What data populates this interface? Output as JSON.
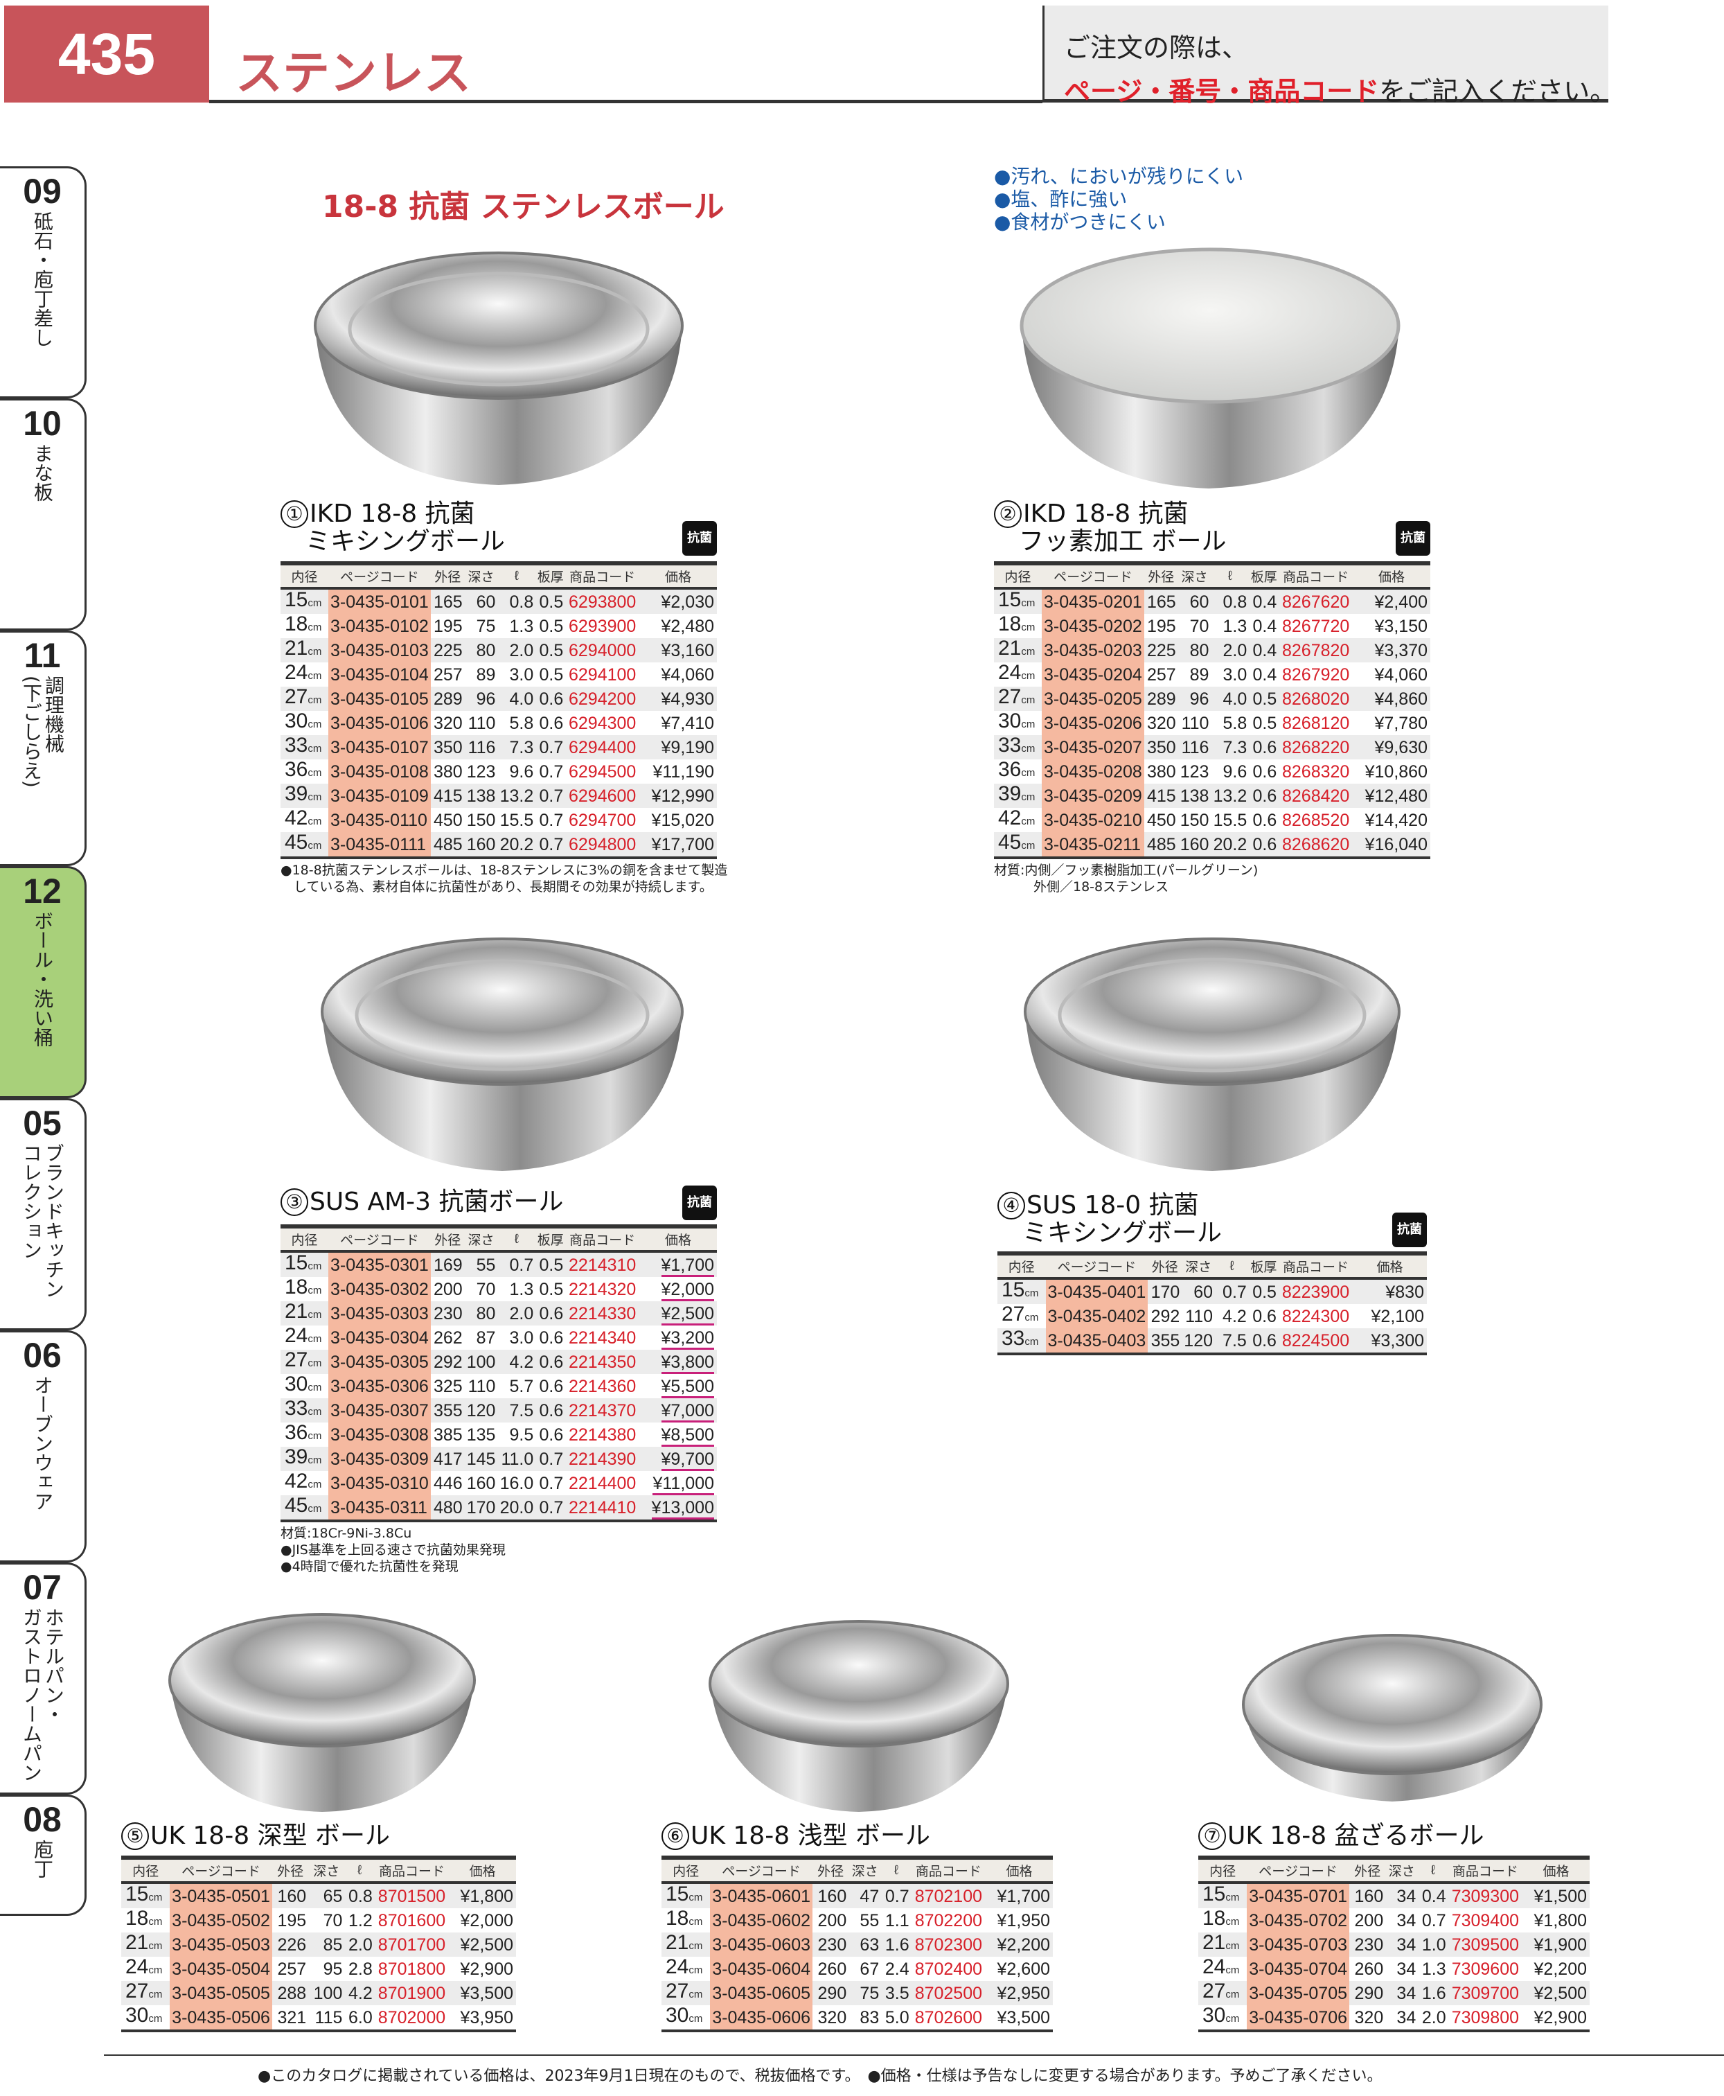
{
  "header": {
    "page_number": "435",
    "category": "ステンレス",
    "order_note_line1": "ご注文の際は、",
    "order_note_red": "ページ・番号・商品コード",
    "order_note_tail": "をご記入ください。"
  },
  "tabs": [
    {
      "num": "09",
      "labels": [
        "砥石・庖丁差し"
      ],
      "active": false
    },
    {
      "num": "10",
      "labels": [
        "まな板"
      ],
      "active": false
    },
    {
      "num": "11",
      "labels": [
        "調理機械",
        "(下ごしらえ)"
      ],
      "active": false
    },
    {
      "num": "12",
      "labels": [
        "ボール・洗い桶"
      ],
      "active": true
    },
    {
      "num": "05",
      "labels": [
        "ブランドキッチン",
        "コレクション"
      ],
      "active": false
    },
    {
      "num": "06",
      "labels": [
        "オーブンウェア"
      ],
      "active": false
    },
    {
      "num": "07",
      "labels": [
        "ホテルパン・",
        "ガストロノームパン"
      ],
      "active": false
    },
    {
      "num": "08",
      "labels": [
        "庖丁"
      ],
      "active": false
    }
  ],
  "section_title": "18-8 抗菌 ステンレスボール",
  "features": [
    "●汚れ、においが残りにくい",
    "●塩、酢に強い",
    "●食材がつきにくい"
  ],
  "antibacterial_icon_label": "抗菌",
  "columns_full": [
    "内径",
    "ページコード",
    "外径",
    "深さ",
    "ℓ",
    "板厚",
    "商品コード",
    "価格"
  ],
  "columns_short": [
    "内径",
    "ページコード",
    "外径",
    "深さ",
    "ℓ",
    "商品コード",
    "価格"
  ],
  "size_unit": "cm",
  "products": [
    {
      "no": "①",
      "title": "IKD 18-8 抗菌\n　ミキシングボール",
      "notes": "●18-8抗菌ステンレスボールは、18-8ステンレスに3%の銅を含ませて製造\n　している為、素材自体に抗菌性があり、長期間その効果が持続します。",
      "rows": [
        [
          "15",
          "3-0435-0101",
          "165",
          "60",
          "0.8",
          "0.5",
          "6293800",
          "¥2,030"
        ],
        [
          "18",
          "3-0435-0102",
          "195",
          "75",
          "1.3",
          "0.5",
          "6293900",
          "¥2,480"
        ],
        [
          "21",
          "3-0435-0103",
          "225",
          "80",
          "2.0",
          "0.5",
          "6294000",
          "¥3,160"
        ],
        [
          "24",
          "3-0435-0104",
          "257",
          "89",
          "3.0",
          "0.5",
          "6294100",
          "¥4,060"
        ],
        [
          "27",
          "3-0435-0105",
          "289",
          "96",
          "4.0",
          "0.6",
          "6294200",
          "¥4,930"
        ],
        [
          "30",
          "3-0435-0106",
          "320",
          "110",
          "5.8",
          "0.6",
          "6294300",
          "¥7,410"
        ],
        [
          "33",
          "3-0435-0107",
          "350",
          "116",
          "7.3",
          "0.7",
          "6294400",
          "¥9,190"
        ],
        [
          "36",
          "3-0435-0108",
          "380",
          "123",
          "9.6",
          "0.7",
          "6294500",
          "¥11,190"
        ],
        [
          "39",
          "3-0435-0109",
          "415",
          "138",
          "13.2",
          "0.7",
          "6294600",
          "¥12,990"
        ],
        [
          "42",
          "3-0435-0110",
          "450",
          "150",
          "15.5",
          "0.7",
          "6294700",
          "¥15,020"
        ],
        [
          "45",
          "3-0435-0111",
          "485",
          "160",
          "20.2",
          "0.7",
          "6294800",
          "¥17,700"
        ]
      ]
    },
    {
      "no": "②",
      "title": "IKD 18-8 抗菌\n　フッ素加工 ボール",
      "notes": "材質:内側／フッ素樹脂加工(パールグリーン)\n　　　外側／18-8ステンレス",
      "rows": [
        [
          "15",
          "3-0435-0201",
          "165",
          "60",
          "0.8",
          "0.4",
          "8267620",
          "¥2,400"
        ],
        [
          "18",
          "3-0435-0202",
          "195",
          "70",
          "1.3",
          "0.4",
          "8267720",
          "¥3,150"
        ],
        [
          "21",
          "3-0435-0203",
          "225",
          "80",
          "2.0",
          "0.4",
          "8267820",
          "¥3,370"
        ],
        [
          "24",
          "3-0435-0204",
          "257",
          "89",
          "3.0",
          "0.4",
          "8267920",
          "¥4,060"
        ],
        [
          "27",
          "3-0435-0205",
          "289",
          "96",
          "4.0",
          "0.5",
          "8268020",
          "¥4,860"
        ],
        [
          "30",
          "3-0435-0206",
          "320",
          "110",
          "5.8",
          "0.5",
          "8268120",
          "¥7,780"
        ],
        [
          "33",
          "3-0435-0207",
          "350",
          "116",
          "7.3",
          "0.6",
          "8268220",
          "¥9,630"
        ],
        [
          "36",
          "3-0435-0208",
          "380",
          "123",
          "9.6",
          "0.6",
          "8268320",
          "¥10,860"
        ],
        [
          "39",
          "3-0435-0209",
          "415",
          "138",
          "13.2",
          "0.6",
          "8268420",
          "¥12,480"
        ],
        [
          "42",
          "3-0435-0210",
          "450",
          "150",
          "15.5",
          "0.6",
          "8268520",
          "¥14,420"
        ],
        [
          "45",
          "3-0435-0211",
          "485",
          "160",
          "20.2",
          "0.6",
          "8268620",
          "¥16,040"
        ]
      ]
    },
    {
      "no": "③",
      "title": "SUS AM-3 抗菌ボール",
      "notes": "材質:18Cr-9Ni-3.8Cu\n●JIS基準を上回る速さで抗菌効果発現\n●4時間で優れた抗菌性を発現",
      "rows": [
        [
          "15",
          "3-0435-0301",
          "169",
          "55",
          "0.7",
          "0.5",
          "2214310",
          "¥1,700"
        ],
        [
          "18",
          "3-0435-0302",
          "200",
          "70",
          "1.3",
          "0.5",
          "2214320",
          "¥2,000"
        ],
        [
          "21",
          "3-0435-0303",
          "230",
          "80",
          "2.0",
          "0.6",
          "2214330",
          "¥2,500"
        ],
        [
          "24",
          "3-0435-0304",
          "262",
          "87",
          "3.0",
          "0.6",
          "2214340",
          "¥3,200"
        ],
        [
          "27",
          "3-0435-0305",
          "292",
          "100",
          "4.2",
          "0.6",
          "2214350",
          "¥3,800"
        ],
        [
          "30",
          "3-0435-0306",
          "325",
          "110",
          "5.7",
          "0.6",
          "2214360",
          "¥5,500"
        ],
        [
          "33",
          "3-0435-0307",
          "355",
          "120",
          "7.5",
          "0.6",
          "2214370",
          "¥7,000"
        ],
        [
          "36",
          "3-0435-0308",
          "385",
          "135",
          "9.5",
          "0.6",
          "2214380",
          "¥8,500"
        ],
        [
          "39",
          "3-0435-0309",
          "417",
          "145",
          "11.0",
          "0.7",
          "2214390",
          "¥9,700"
        ],
        [
          "42",
          "3-0435-0310",
          "446",
          "160",
          "16.0",
          "0.7",
          "2214400",
          "¥11,000"
        ],
        [
          "45",
          "3-0435-0311",
          "480",
          "170",
          "20.0",
          "0.7",
          "2214410",
          "¥13,000"
        ]
      ]
    },
    {
      "no": "④",
      "title": "SUS 18-0 抗菌\n　ミキシングボール",
      "notes": "",
      "rows": [
        [
          "15",
          "3-0435-0401",
          "170",
          "60",
          "0.7",
          "0.5",
          "8223900",
          "¥830"
        ],
        [
          "27",
          "3-0435-0402",
          "292",
          "110",
          "4.2",
          "0.6",
          "8224300",
          "¥2,100"
        ],
        [
          "33",
          "3-0435-0403",
          "355",
          "120",
          "7.5",
          "0.6",
          "8224500",
          "¥3,300"
        ]
      ]
    },
    {
      "no": "⑤",
      "title": "UK 18-8 深型 ボール",
      "notes": "",
      "rows": [
        [
          "15",
          "3-0435-0501",
          "160",
          "65",
          "0.8",
          "8701500",
          "¥1,800"
        ],
        [
          "18",
          "3-0435-0502",
          "195",
          "70",
          "1.2",
          "8701600",
          "¥2,000"
        ],
        [
          "21",
          "3-0435-0503",
          "226",
          "85",
          "2.0",
          "8701700",
          "¥2,500"
        ],
        [
          "24",
          "3-0435-0504",
          "257",
          "95",
          "2.8",
          "8701800",
          "¥2,900"
        ],
        [
          "27",
          "3-0435-0505",
          "288",
          "100",
          "4.2",
          "8701900",
          "¥3,500"
        ],
        [
          "30",
          "3-0435-0506",
          "321",
          "115",
          "6.0",
          "8702000",
          "¥3,950"
        ]
      ]
    },
    {
      "no": "⑥",
      "title": "UK 18-8 浅型 ボール",
      "notes": "",
      "rows": [
        [
          "15",
          "3-0435-0601",
          "160",
          "47",
          "0.7",
          "8702100",
          "¥1,700"
        ],
        [
          "18",
          "3-0435-0602",
          "200",
          "55",
          "1.1",
          "8702200",
          "¥1,950"
        ],
        [
          "21",
          "3-0435-0603",
          "230",
          "63",
          "1.6",
          "8702300",
          "¥2,200"
        ],
        [
          "24",
          "3-0435-0604",
          "260",
          "67",
          "2.4",
          "8702400",
          "¥2,600"
        ],
        [
          "27",
          "3-0435-0605",
          "290",
          "75",
          "3.5",
          "8702500",
          "¥2,950"
        ],
        [
          "30",
          "3-0435-0606",
          "320",
          "83",
          "5.0",
          "8702600",
          "¥3,500"
        ]
      ]
    },
    {
      "no": "⑦",
      "title": "UK 18-8 盆ざるボール",
      "notes": "",
      "rows": [
        [
          "15",
          "3-0435-0701",
          "160",
          "34",
          "0.4",
          "7309300",
          "¥1,500"
        ],
        [
          "18",
          "3-0435-0702",
          "200",
          "34",
          "0.7",
          "7309400",
          "¥1,800"
        ],
        [
          "21",
          "3-0435-0703",
          "230",
          "34",
          "1.0",
          "7309500",
          "¥1,900"
        ],
        [
          "24",
          "3-0435-0704",
          "260",
          "34",
          "1.3",
          "7309600",
          "¥2,200"
        ],
        [
          "27",
          "3-0435-0705",
          "290",
          "34",
          "1.6",
          "7309700",
          "¥2,500"
        ],
        [
          "30",
          "3-0435-0706",
          "320",
          "34",
          "2.0",
          "7309800",
          "¥2,900"
        ]
      ]
    }
  ],
  "footer": "●このカタログに掲載されている価格は、2023年9月1日現在のもので、税抜価格です。　●価格・仕様は予告なしに変更する場合があります。予めご了承ください。"
}
